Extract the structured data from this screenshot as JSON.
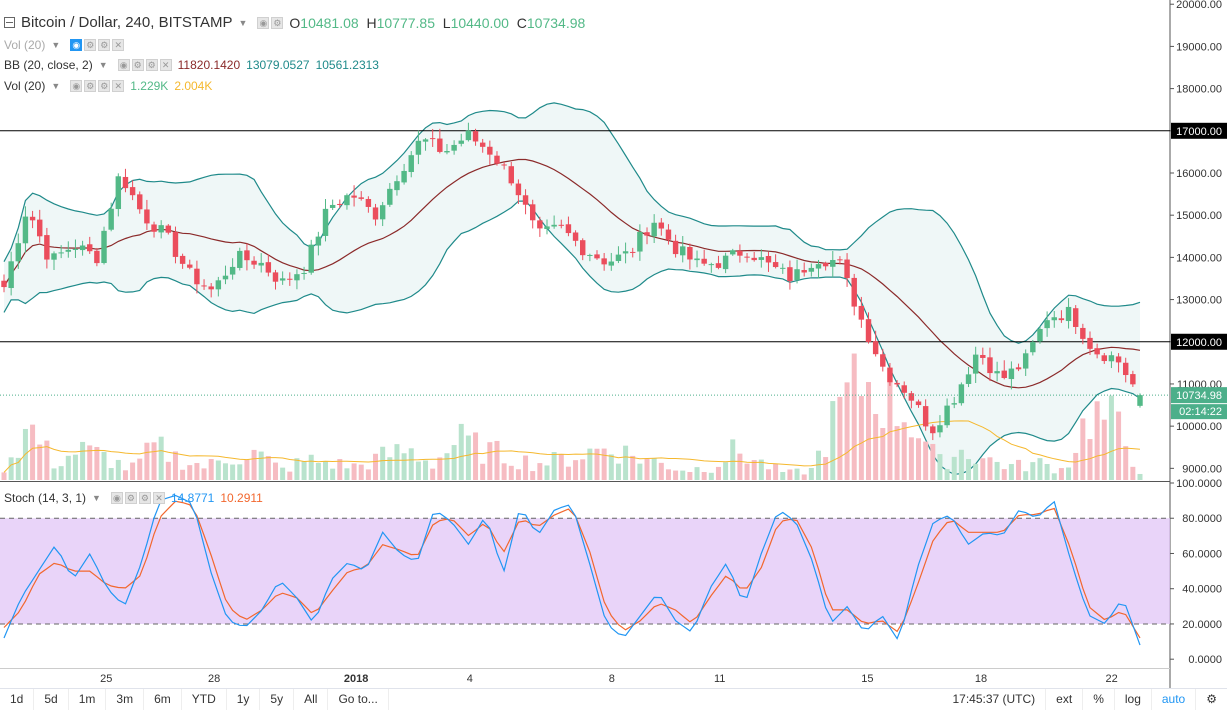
{
  "header": {
    "symbol_title": "Bitcoin / Dollar, 240, BITSTAMP",
    "ohlc": {
      "o_label": "O",
      "o": "10481.08",
      "h_label": "H",
      "h": "10777.85",
      "l_label": "L",
      "l": "10440.00",
      "c_label": "C",
      "c": "10734.98"
    }
  },
  "indicators": {
    "vol_top": {
      "label": "Vol (20)"
    },
    "bb": {
      "label": "BB (20, close, 2)",
      "mid": "11820.1420",
      "upper": "13079.0527",
      "lower": "10561.2313"
    },
    "vol": {
      "label": "Vol (20)",
      "v1": "1.229K",
      "v2": "2.004K"
    },
    "stoch": {
      "label": "Stoch (14, 3, 1)",
      "k": "14.8771",
      "d": "10.2911"
    }
  },
  "price_axis": {
    "ticks": [
      "20000.00",
      "19000.00",
      "18000.00",
      "17000.00",
      "16000.00",
      "15000.00",
      "14000.00",
      "13000.00",
      "12000.00",
      "11000.00",
      "10000.00",
      "9000.00"
    ],
    "current_price": "10734.98",
    "countdown": "02:14:22",
    "hlines": [
      17000,
      12000
    ]
  },
  "stoch_axis": {
    "ticks": [
      "100.0000",
      "80.0000",
      "60.0000",
      "40.0000",
      "20.0000",
      "0.0000"
    ]
  },
  "time_axis": {
    "labels": [
      "25",
      "28",
      "2018",
      "4",
      "8",
      "11",
      "15",
      "18",
      "22"
    ]
  },
  "toolbar": {
    "ranges": [
      "1d",
      "5d",
      "1m",
      "3m",
      "6m",
      "YTD",
      "1y",
      "5y",
      "All"
    ],
    "goto": "Go to...",
    "clock": "17:45:37 (UTC)",
    "ext": "ext",
    "pct": "%",
    "log": "log",
    "auto": "auto"
  },
  "colors": {
    "up": "#53b987",
    "down": "#eb4d5c",
    "bb_mid": "#8b2a2a",
    "bb_band": "#1f8a8a",
    "stoch_k": "#2196f3",
    "stoch_d": "#f2672e",
    "stoch_bg": "#e2c6f7",
    "vol_ma": "#f5b82e",
    "badge": "#4caf8a"
  },
  "chart_data": {
    "type": "candlestick",
    "symbol": "Bitcoin / Dollar",
    "interval": "240",
    "ylim": [
      8700,
      20100
    ],
    "stoch_ylim": [
      -5,
      100
    ],
    "x_labels": [
      "25",
      "28",
      "2018",
      "4",
      "8",
      "11",
      "15",
      "18",
      "22"
    ],
    "close_path_anchors": [
      13300,
      15200,
      13900,
      14300,
      14000,
      16000,
      15000,
      14500,
      13600,
      13200,
      14000,
      13900,
      13400,
      13800,
      15200,
      15500,
      15000,
      16000,
      16800,
      16500,
      16900,
      16500,
      15800,
      14500,
      14700,
      14200,
      13900,
      14100,
      14900,
      14200,
      13800,
      13900,
      14200,
      13800,
      13500,
      14000,
      13900,
      12500,
      11300,
      10800,
      9900,
      10700,
      11800,
      11100,
      11500,
      12600,
      12700,
      11800,
      11600,
      10700
    ],
    "volume_path_anchors": [
      400,
      1600,
      500,
      900,
      700,
      300,
      1000,
      600,
      400,
      700,
      800,
      300,
      600,
      500,
      400,
      700,
      900,
      500,
      1200,
      900,
      700,
      500,
      600,
      800,
      1000,
      700,
      500,
      300,
      400,
      900,
      500,
      200,
      300,
      2000,
      3000,
      2500,
      1800,
      500,
      900,
      600,
      400,
      500,
      300,
      2000,
      1700,
      300
    ],
    "stoch_k_anchors": [
      12,
      35,
      50,
      65,
      45,
      60,
      40,
      30,
      55,
      90,
      93,
      88,
      50,
      22,
      18,
      28,
      45,
      35,
      20,
      45,
      55,
      50,
      72,
      60,
      55,
      85,
      78,
      65,
      82,
      48,
      87,
      70,
      85,
      88,
      55,
      20,
      12,
      25,
      38,
      22,
      15,
      40,
      55,
      30,
      60,
      85,
      78,
      55,
      20,
      30,
      15,
      25,
      10,
      50,
      78,
      82,
      65,
      72,
      70,
      85,
      80,
      90,
      55,
      25,
      20,
      35,
      8
    ],
    "stoch_d_anchors": [
      18,
      28,
      48,
      55,
      50,
      50,
      42,
      40,
      48,
      80,
      90,
      87,
      60,
      30,
      22,
      28,
      38,
      35,
      25,
      38,
      50,
      52,
      65,
      62,
      58,
      78,
      80,
      70,
      78,
      60,
      80,
      75,
      82,
      86,
      62,
      28,
      16,
      22,
      32,
      28,
      20,
      35,
      48,
      38,
      52,
      78,
      80,
      62,
      28,
      28,
      20,
      22,
      15,
      40,
      68,
      80,
      72,
      72,
      72,
      82,
      82,
      86,
      62,
      30,
      22,
      28,
      12
    ],
    "volume_ma_range": "approx 700 → 200 → 1800 → 700 (decaying then rising)",
    "current": {
      "open": 10481.08,
      "high": 10777.85,
      "low": 10440.0,
      "close": 10734.98
    },
    "bb_last": {
      "mid": 11820.142,
      "upper": 13079.0527,
      "lower": 10561.2313
    },
    "stoch_last": {
      "k": 14.8771,
      "d": 10.2911
    }
  }
}
